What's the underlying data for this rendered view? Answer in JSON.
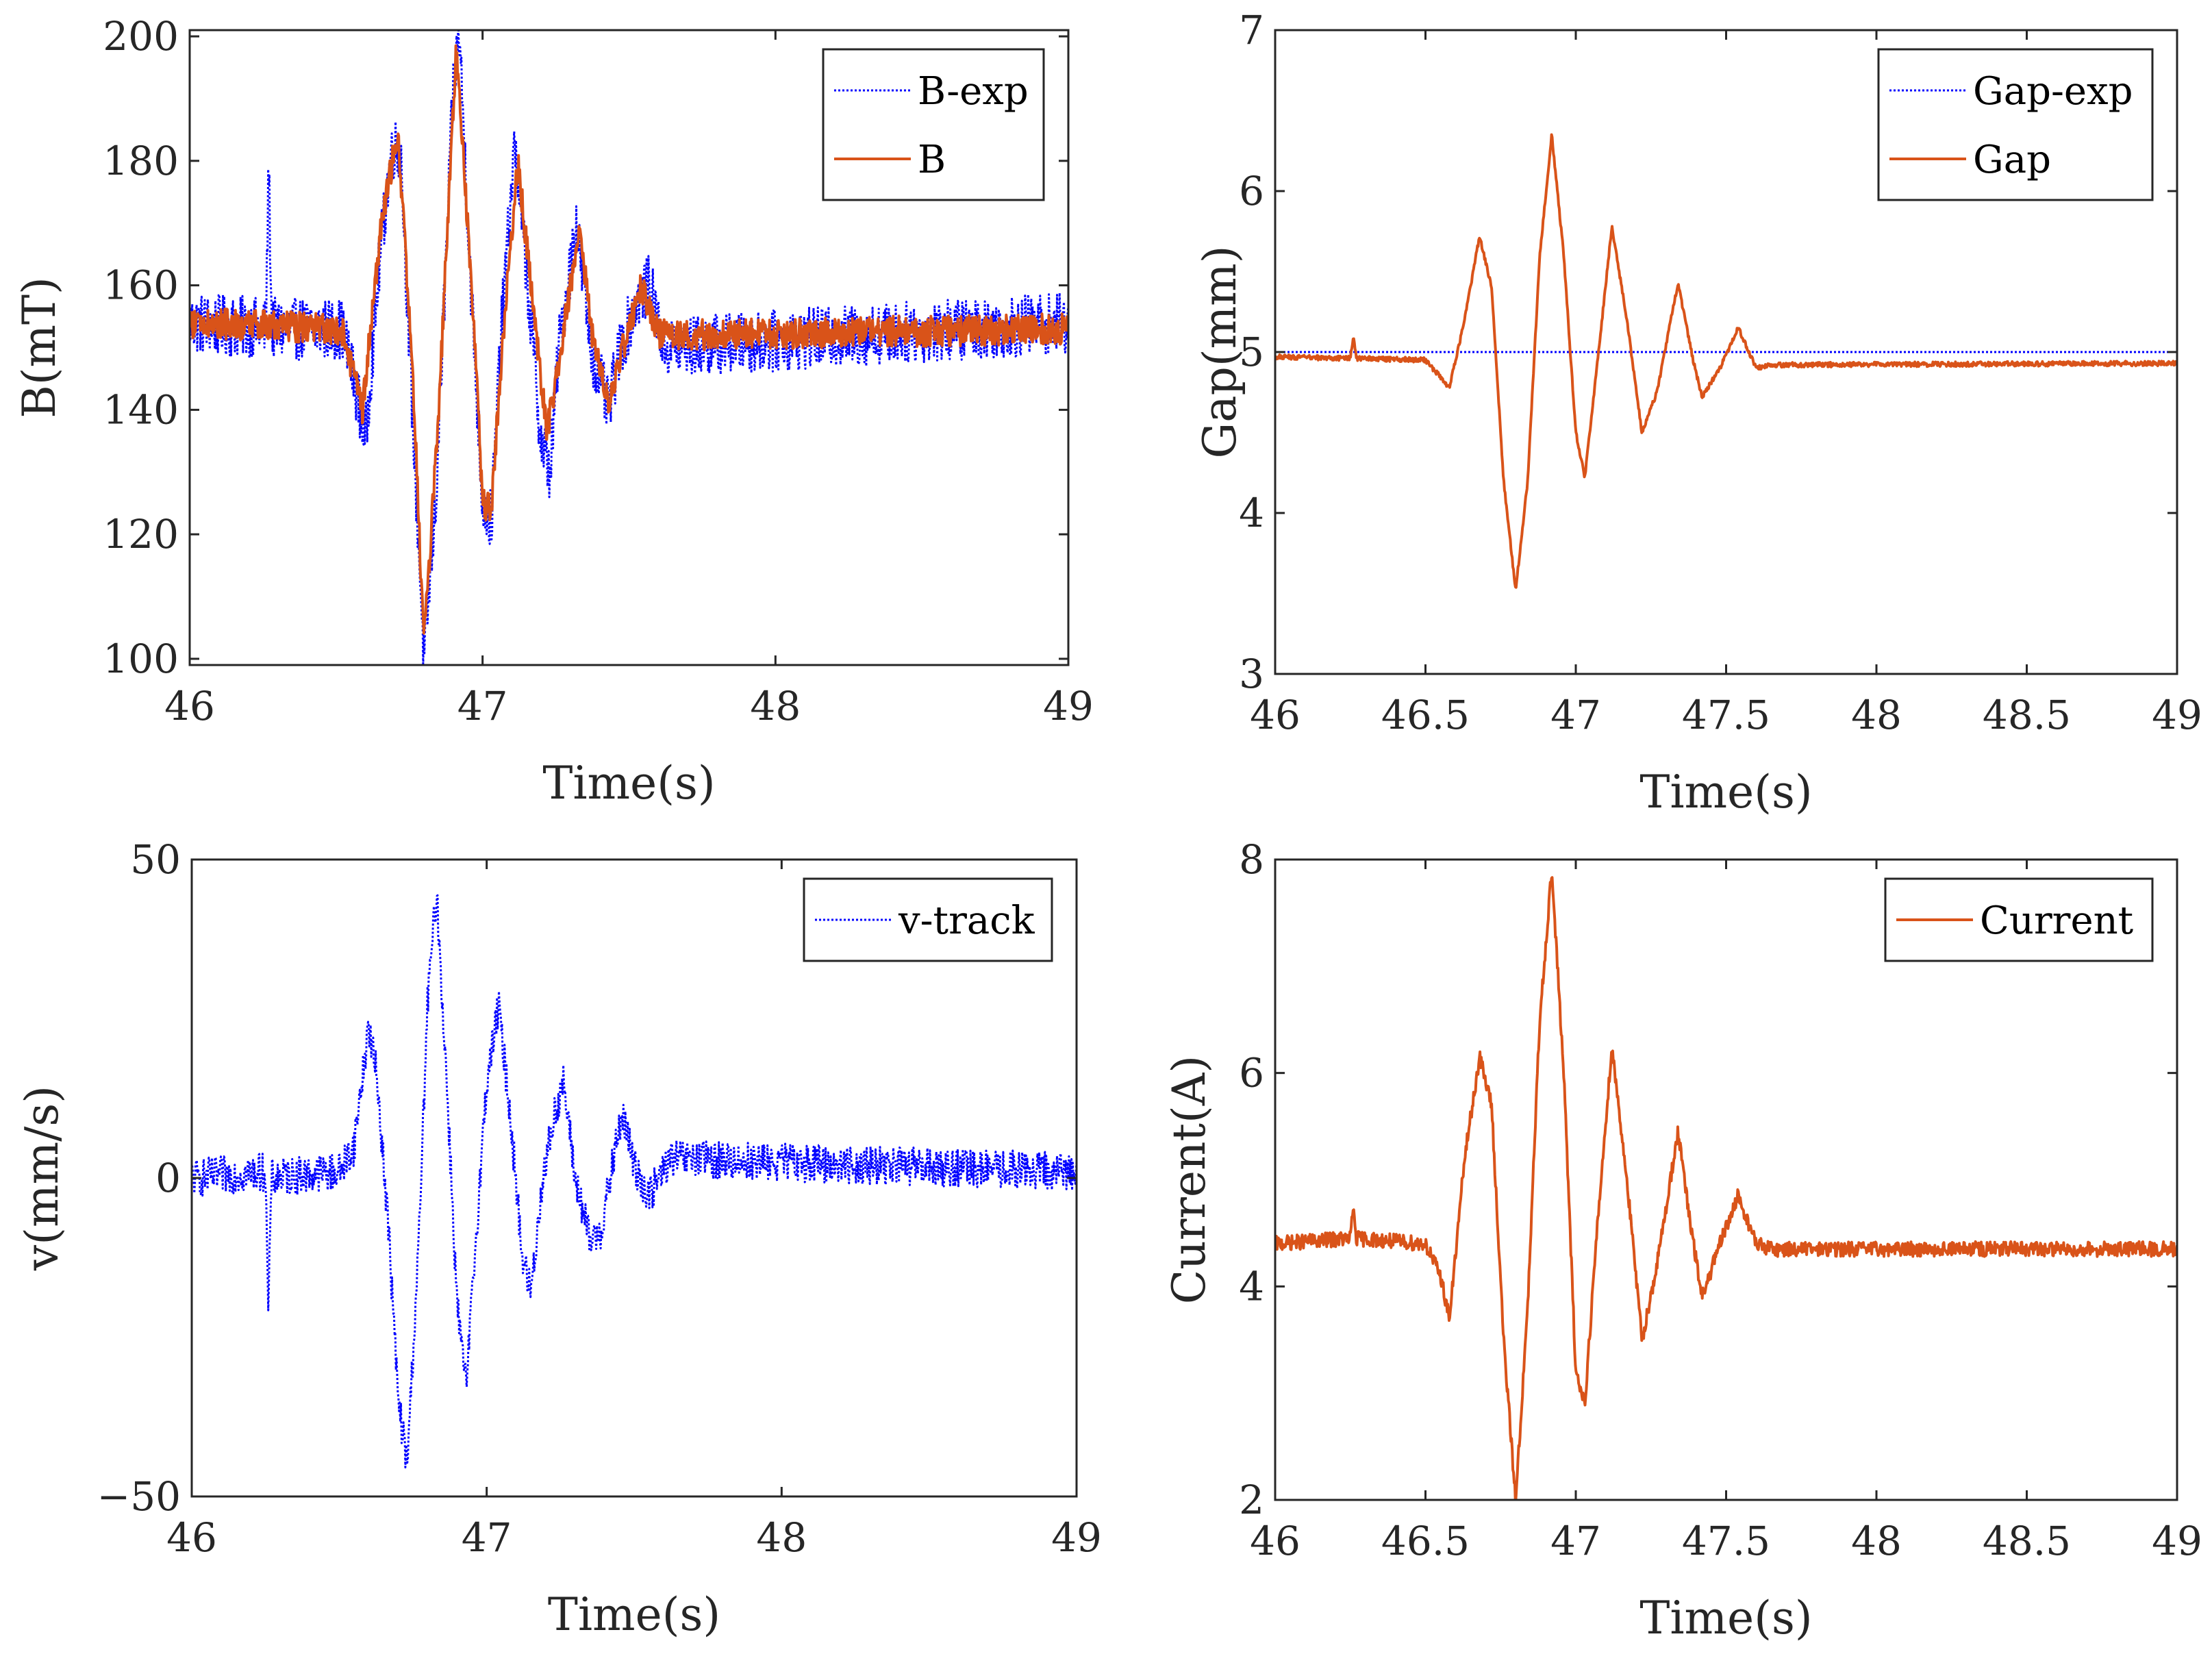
{
  "figure": {
    "description_free": true
  },
  "colors": {
    "exp": "#0000ff",
    "model": "#d95319",
    "axis": "#262626"
  },
  "chart_data": [
    {
      "id": "B",
      "type": "line",
      "title": "",
      "xlabel": "Time(s)",
      "ylabel": "B(mT)",
      "xlim": [
        46,
        49
      ],
      "ylim": [
        99,
        201
      ],
      "xticks": [
        46,
        47,
        48,
        49
      ],
      "xtick_labels": [
        "46",
        "47",
        "48",
        "49"
      ],
      "yticks": [
        100,
        120,
        140,
        160,
        180,
        200
      ],
      "ytick_labels": [
        "100",
        "120",
        "140",
        "160",
        "180",
        "200"
      ],
      "legend": {
        "placement": "top-right"
      },
      "series": [
        {
          "name": "B-exp",
          "style": "dotted",
          "color": "#0000ff",
          "noise": 5,
          "points": [
            [
              46.0,
              154
            ],
            [
              46.26,
              153
            ],
            [
              46.27,
              180
            ],
            [
              46.28,
              153
            ],
            [
              46.52,
              153
            ],
            [
              46.57,
              143
            ],
            [
              46.6,
              135
            ],
            [
              46.65,
              165
            ],
            [
              46.69,
              182
            ],
            [
              46.72,
              182
            ],
            [
              46.76,
              140
            ],
            [
              46.8,
              100
            ],
            [
              46.84,
              125
            ],
            [
              46.9,
              192
            ],
            [
              46.92,
              201
            ],
            [
              46.96,
              160
            ],
            [
              47.0,
              125
            ],
            [
              47.03,
              122
            ],
            [
              47.06,
              150
            ],
            [
              47.11,
              183
            ],
            [
              47.15,
              162
            ],
            [
              47.2,
              135
            ],
            [
              47.23,
              130
            ],
            [
              47.26,
              150
            ],
            [
              47.32,
              170
            ],
            [
              47.37,
              150
            ],
            [
              47.43,
              140
            ],
            [
              47.47,
              150
            ],
            [
              47.53,
              158
            ],
            [
              47.57,
              160
            ],
            [
              47.62,
              150
            ],
            [
              49.0,
              154
            ]
          ]
        },
        {
          "name": "B",
          "style": "solid",
          "color": "#d95319",
          "noise": 2.5,
          "points": [
            [
              46.0,
              154
            ],
            [
              46.52,
              153
            ],
            [
              46.59,
              140
            ],
            [
              46.65,
              168
            ],
            [
              46.71,
              185
            ],
            [
              46.76,
              148
            ],
            [
              46.8,
              102
            ],
            [
              46.85,
              140
            ],
            [
              46.91,
              198
            ],
            [
              46.97,
              155
            ],
            [
              47.0,
              125
            ],
            [
              47.03,
              124
            ],
            [
              47.07,
              152
            ],
            [
              47.12,
              180
            ],
            [
              47.17,
              158
            ],
            [
              47.22,
              136
            ],
            [
              47.26,
              148
            ],
            [
              47.33,
              169
            ],
            [
              47.38,
              150
            ],
            [
              47.43,
              141
            ],
            [
              47.48,
              150
            ],
            [
              47.54,
              160
            ],
            [
              47.6,
              152
            ],
            [
              49.0,
              153
            ]
          ]
        }
      ]
    },
    {
      "id": "Gap",
      "type": "line",
      "title": "",
      "xlabel": "Time(s)",
      "ylabel": "Gap(mm)",
      "xlim": [
        46,
        49
      ],
      "ylim": [
        3,
        7
      ],
      "xticks": [
        46,
        46.5,
        47,
        47.5,
        48,
        48.5,
        49
      ],
      "xtick_labels": [
        "46",
        "46.5",
        "47",
        "47.5",
        "48",
        "48.5",
        "49"
      ],
      "yticks": [
        3,
        4,
        5,
        6,
        7
      ],
      "ytick_labels": [
        "3",
        "4",
        "5",
        "6",
        "7"
      ],
      "legend": {
        "placement": "top-right"
      },
      "series": [
        {
          "name": "Gap-exp",
          "style": "dotted",
          "color": "#0000ff",
          "noise": 0,
          "points": [
            [
              46.0,
              5.0
            ],
            [
              49.0,
              5.0
            ]
          ]
        },
        {
          "name": "Gap",
          "style": "solid",
          "color": "#d95319",
          "noise": 0.015,
          "points": [
            [
              46.0,
              4.97
            ],
            [
              46.25,
              4.96
            ],
            [
              46.26,
              5.1
            ],
            [
              46.27,
              4.96
            ],
            [
              46.5,
              4.95
            ],
            [
              46.58,
              4.78
            ],
            [
              46.63,
              5.2
            ],
            [
              46.68,
              5.72
            ],
            [
              46.72,
              5.4
            ],
            [
              46.76,
              4.2
            ],
            [
              46.8,
              3.52
            ],
            [
              46.84,
              4.2
            ],
            [
              46.88,
              5.6
            ],
            [
              46.92,
              6.35
            ],
            [
              46.96,
              5.6
            ],
            [
              47.0,
              4.5
            ],
            [
              47.03,
              4.22
            ],
            [
              47.07,
              4.9
            ],
            [
              47.12,
              5.78
            ],
            [
              47.17,
              5.2
            ],
            [
              47.22,
              4.5
            ],
            [
              47.27,
              4.75
            ],
            [
              47.34,
              5.43
            ],
            [
              47.39,
              4.95
            ],
            [
              47.42,
              4.72
            ],
            [
              47.48,
              4.9
            ],
            [
              47.54,
              5.15
            ],
            [
              47.6,
              4.9
            ],
            [
              47.65,
              4.92
            ],
            [
              49.0,
              4.93
            ]
          ]
        }
      ]
    },
    {
      "id": "v",
      "type": "line",
      "title": "",
      "xlabel": "Time(s)",
      "ylabel": "v(mm/s)",
      "xlim": [
        46,
        49
      ],
      "ylim": [
        -50,
        50
      ],
      "xticks": [
        46,
        47,
        48,
        49
      ],
      "xtick_labels": [
        "46",
        "47",
        "48",
        "49"
      ],
      "yticks": [
        -50,
        0,
        50
      ],
      "ytick_labels": [
        "−50",
        "0",
        "50"
      ],
      "legend": {
        "placement": "top-right"
      },
      "series": [
        {
          "name": "v-track",
          "style": "dotted",
          "color": "#0000ff",
          "noise": 3,
          "points": [
            [
              46.0,
              0
            ],
            [
              46.25,
              1
            ],
            [
              46.26,
              -22
            ],
            [
              46.27,
              0
            ],
            [
              46.5,
              1
            ],
            [
              46.55,
              5
            ],
            [
              46.6,
              24
            ],
            [
              46.63,
              15
            ],
            [
              46.67,
              -10
            ],
            [
              46.7,
              -35
            ],
            [
              46.73,
              -45
            ],
            [
              46.77,
              -10
            ],
            [
              46.8,
              28
            ],
            [
              46.83,
              45
            ],
            [
              46.87,
              10
            ],
            [
              46.9,
              -20
            ],
            [
              46.93,
              -33
            ],
            [
              46.97,
              -5
            ],
            [
              47.0,
              15
            ],
            [
              47.04,
              27
            ],
            [
              47.08,
              10
            ],
            [
              47.12,
              -12
            ],
            [
              47.15,
              -18
            ],
            [
              47.19,
              0
            ],
            [
              47.23,
              10
            ],
            [
              47.26,
              15
            ],
            [
              47.3,
              0
            ],
            [
              47.35,
              -10
            ],
            [
              47.39,
              -8
            ],
            [
              47.43,
              3
            ],
            [
              47.46,
              10
            ],
            [
              47.5,
              2
            ],
            [
              47.55,
              -3
            ],
            [
              47.62,
              3
            ],
            [
              49.0,
              1
            ]
          ]
        }
      ]
    },
    {
      "id": "Current",
      "type": "line",
      "title": "",
      "xlabel": "Time(s)",
      "ylabel": "Current(A)",
      "xlim": [
        46,
        49
      ],
      "ylim": [
        2,
        8
      ],
      "xticks": [
        46,
        46.5,
        47,
        47.5,
        48,
        48.5,
        49
      ],
      "xtick_labels": [
        "46",
        "46.5",
        "47",
        "47.5",
        "48",
        "48.5",
        "49"
      ],
      "yticks": [
        2,
        4,
        6,
        8
      ],
      "ytick_labels": [
        "2",
        "4",
        "6",
        "8"
      ],
      "legend": {
        "placement": "top-right"
      },
      "series": [
        {
          "name": "Current",
          "style": "solid",
          "color": "#d95319",
          "noise": 0.07,
          "points": [
            [
              46.0,
              4.4
            ],
            [
              46.25,
              4.45
            ],
            [
              46.26,
              4.75
            ],
            [
              46.27,
              4.45
            ],
            [
              46.5,
              4.4
            ],
            [
              46.55,
              4.1
            ],
            [
              46.58,
              3.7
            ],
            [
              46.63,
              5.2
            ],
            [
              46.68,
              6.15
            ],
            [
              46.72,
              5.7
            ],
            [
              46.76,
              3.5
            ],
            [
              46.8,
              2.0
            ],
            [
              46.84,
              3.8
            ],
            [
              46.88,
              6.5
            ],
            [
              46.92,
              7.9
            ],
            [
              46.96,
              6.0
            ],
            [
              47.0,
              3.2
            ],
            [
              47.03,
              2.9
            ],
            [
              47.07,
              4.5
            ],
            [
              47.12,
              6.25
            ],
            [
              47.17,
              5.0
            ],
            [
              47.22,
              3.5
            ],
            [
              47.27,
              4.2
            ],
            [
              47.34,
              5.45
            ],
            [
              47.38,
              4.6
            ],
            [
              47.42,
              3.9
            ],
            [
              47.48,
              4.4
            ],
            [
              47.54,
              4.85
            ],
            [
              47.6,
              4.4
            ],
            [
              47.65,
              4.35
            ],
            [
              49.0,
              4.35
            ]
          ]
        }
      ]
    }
  ]
}
